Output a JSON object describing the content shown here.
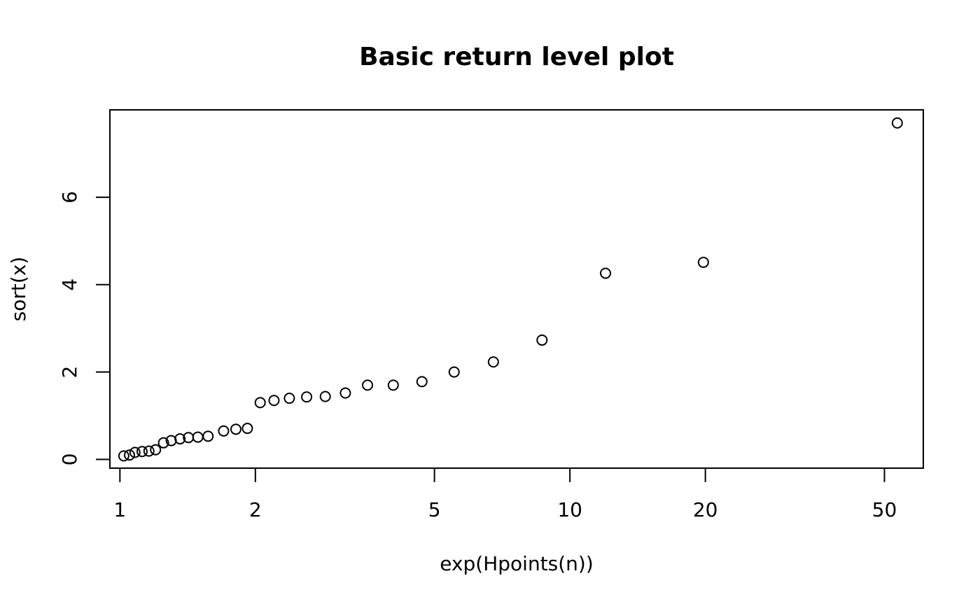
{
  "chart_data": {
    "type": "scatter",
    "title": "Basic return level plot",
    "xlabel": "exp(Hpoints(n))",
    "ylabel": "sort(x)",
    "x_scale": "log",
    "xlim": [
      0.95,
      61
    ],
    "ylim": [
      -0.2,
      8.0
    ],
    "x_ticks": [
      1,
      2,
      5,
      10,
      20,
      50
    ],
    "x_tick_labels": [
      "1",
      "2",
      "5",
      "10",
      "20",
      "50"
    ],
    "y_ticks": [
      0,
      2,
      4,
      6
    ],
    "y_tick_labels": [
      "0",
      "2",
      "4",
      "6"
    ],
    "grid": false,
    "legend": "none",
    "marker": "open-circle",
    "points": [
      {
        "x": 1.02,
        "y": 0.08
      },
      {
        "x": 1.05,
        "y": 0.1
      },
      {
        "x": 1.08,
        "y": 0.16
      },
      {
        "x": 1.12,
        "y": 0.18
      },
      {
        "x": 1.16,
        "y": 0.19
      },
      {
        "x": 1.2,
        "y": 0.22
      },
      {
        "x": 1.25,
        "y": 0.38
      },
      {
        "x": 1.3,
        "y": 0.43
      },
      {
        "x": 1.36,
        "y": 0.47
      },
      {
        "x": 1.42,
        "y": 0.5
      },
      {
        "x": 1.49,
        "y": 0.51
      },
      {
        "x": 1.57,
        "y": 0.53
      },
      {
        "x": 1.7,
        "y": 0.65
      },
      {
        "x": 1.81,
        "y": 0.69
      },
      {
        "x": 1.92,
        "y": 0.71
      },
      {
        "x": 2.05,
        "y": 1.3
      },
      {
        "x": 2.2,
        "y": 1.35
      },
      {
        "x": 2.38,
        "y": 1.4
      },
      {
        "x": 2.6,
        "y": 1.43
      },
      {
        "x": 2.86,
        "y": 1.44
      },
      {
        "x": 3.17,
        "y": 1.52
      },
      {
        "x": 3.55,
        "y": 1.7
      },
      {
        "x": 4.05,
        "y": 1.7
      },
      {
        "x": 4.69,
        "y": 1.78
      },
      {
        "x": 5.53,
        "y": 2.0
      },
      {
        "x": 6.76,
        "y": 2.23
      },
      {
        "x": 8.67,
        "y": 2.73
      },
      {
        "x": 12.0,
        "y": 4.26
      },
      {
        "x": 19.8,
        "y": 4.51
      },
      {
        "x": 53.4,
        "y": 7.7
      }
    ]
  }
}
